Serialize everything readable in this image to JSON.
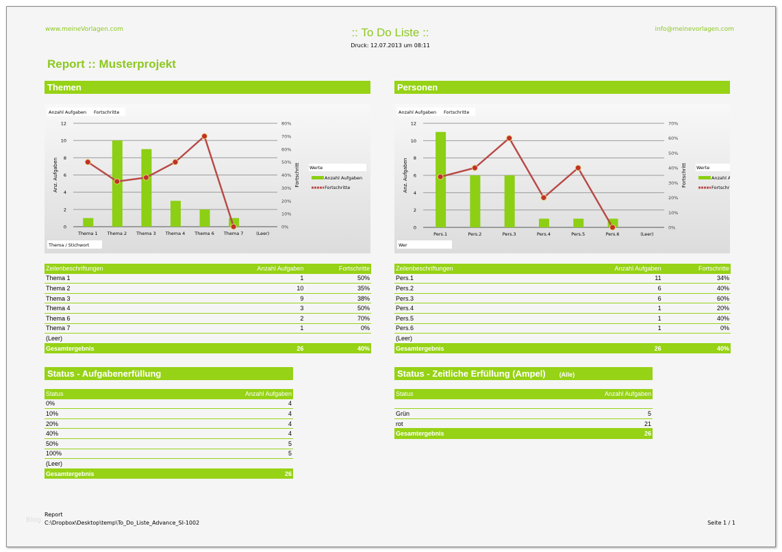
{
  "header": {
    "left_url": "www.meineVorlagen.com",
    "title": ":: To Do Liste ::",
    "print_date": "Druck: 12.07.2013 um 08:11",
    "right_email": "info@meinevorlagen.com"
  },
  "report_title": "Report :: Musterprojekt",
  "colors": {
    "accent": "#96d215",
    "line": "#c0504d"
  },
  "themen": {
    "section_title": "Themen",
    "table": {
      "headers": [
        "Zeilenbeschriftungen",
        "Anzahl Aufgaben",
        "Fortschritte"
      ],
      "rows": [
        [
          "Thema 1",
          "1",
          "50%"
        ],
        [
          "Thema 2",
          "10",
          "35%"
        ],
        [
          "Thema 3",
          "9",
          "38%"
        ],
        [
          "Thema 4",
          "3",
          "50%"
        ],
        [
          "Thema 6",
          "2",
          "70%"
        ],
        [
          "Thema 7",
          "1",
          "0%"
        ],
        [
          "(Leer)",
          "",
          ""
        ]
      ],
      "total": [
        "Gesamtergebnis",
        "26",
        "40%"
      ]
    }
  },
  "personen": {
    "section_title": "Personen",
    "table": {
      "headers": [
        "Zeilenbeschriftungen",
        "Anzahl Aufgaben",
        "Fortschritte"
      ],
      "rows": [
        [
          "Pers.1",
          "11",
          "34%"
        ],
        [
          "Pers.2",
          "6",
          "40%"
        ],
        [
          "Pers.3",
          "6",
          "60%"
        ],
        [
          "Pers.4",
          "1",
          "20%"
        ],
        [
          "Pers.5",
          "1",
          "40%"
        ],
        [
          "Pers.6",
          "1",
          "0%"
        ],
        [
          "(Leer)",
          "",
          ""
        ]
      ],
      "total": [
        "Gesamtergebnis",
        "26",
        "40%"
      ]
    }
  },
  "status": {
    "section_title": "Status - Aufgabenerfüllung",
    "headers": [
      "Status",
      "Anzahl Aufgaben"
    ],
    "rows": [
      [
        "0%",
        "4"
      ],
      [
        "10%",
        "4"
      ],
      [
        "20%",
        "4"
      ],
      [
        "40%",
        "4"
      ],
      [
        "50%",
        "5"
      ],
      [
        "100%",
        "5"
      ],
      [
        "(Leer)",
        ""
      ]
    ],
    "total": [
      "Gesamtergebnis",
      "26"
    ]
  },
  "ampel": {
    "section_title": "Status - Zeitliche Erfüllung (Ampel)",
    "filter": "(Alle)",
    "headers": [
      "Status",
      "Anzahl Aufgaben"
    ],
    "rows": [
      [
        "",
        ""
      ],
      [
        "Grün",
        "5"
      ],
      [
        "rot",
        "21"
      ]
    ],
    "total": [
      "Gesamtergebnis",
      "26"
    ]
  },
  "footer": {
    "watermark": "Blog",
    "label": "Report",
    "path": "C:\\Dropbox\\Desktop\\temp\\To_Do_Liste_Advance_SI-1002",
    "page": "Seite 1 / 1"
  },
  "chart_data": [
    {
      "type": "bar+line",
      "title": "",
      "field_buttons": [
        "Anzahl Aufgaben",
        "Fortschritte"
      ],
      "axis_field": "Thema / Stichwort",
      "categories": [
        "Thema 1",
        "Thema 2",
        "Thema 3",
        "Thema 4",
        "Thema 6",
        "Thema 7",
        "(Leer)"
      ],
      "ylabel": "Anz. Aufgaben",
      "y2label": "Fortschritt",
      "ylim": [
        0,
        12
      ],
      "yticks": [
        0,
        2,
        4,
        6,
        8,
        10,
        12
      ],
      "y2lim": [
        0,
        80
      ],
      "y2ticks": [
        0,
        10,
        20,
        30,
        40,
        50,
        60,
        70,
        80
      ],
      "grid": true,
      "legend": "right",
      "legend_title": "Werte",
      "series": [
        {
          "name": "Anzahl Aufgaben",
          "type": "bar",
          "axis": "left",
          "values": [
            1,
            10,
            9,
            3,
            2,
            1,
            null
          ]
        },
        {
          "name": "Fortschritte",
          "type": "line",
          "axis": "right",
          "values": [
            50,
            35,
            38,
            50,
            70,
            0,
            null
          ]
        }
      ]
    },
    {
      "type": "bar+line",
      "title": "",
      "field_buttons": [
        "Anzahl Aufgaben",
        "Fortschritte"
      ],
      "axis_field": "Wer",
      "categories": [
        "Pers.1",
        "Pers.2",
        "Pers.3",
        "Pers.4",
        "Pers.5",
        "Pers.6",
        "(Leer)"
      ],
      "ylabel": "Anz. Aufgaben",
      "y2label": "Fortschritt",
      "ylim": [
        0,
        12
      ],
      "yticks": [
        0,
        2,
        4,
        6,
        8,
        10,
        12
      ],
      "y2lim": [
        0,
        70
      ],
      "y2ticks": [
        0,
        10,
        20,
        30,
        40,
        50,
        60,
        70
      ],
      "grid": true,
      "legend": "right",
      "legend_title": "Werte",
      "series": [
        {
          "name": "Anzahl Aufgaben",
          "type": "bar",
          "axis": "left",
          "values": [
            11,
            6,
            6,
            1,
            1,
            1,
            null
          ]
        },
        {
          "name": "Fortschritte",
          "type": "line",
          "axis": "right",
          "values": [
            34,
            40,
            60,
            20,
            40,
            0,
            null
          ]
        }
      ]
    }
  ]
}
